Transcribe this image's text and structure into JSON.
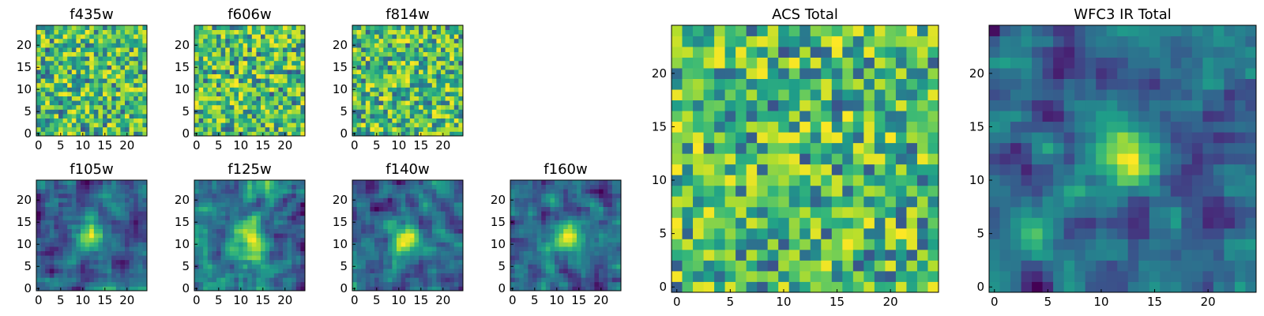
{
  "chart_data": [
    {
      "id": "f435w",
      "type": "heatmap",
      "title": "f435w",
      "grid_size": [
        25,
        25
      ],
      "xticks": [
        0,
        5,
        10,
        15,
        20
      ],
      "yticks": [
        0,
        5,
        10,
        15,
        20
      ],
      "colormap": "viridis",
      "grid": false,
      "peak": null
    },
    {
      "id": "f606w",
      "type": "heatmap",
      "title": "f606w",
      "grid_size": [
        25,
        25
      ],
      "xticks": [
        0,
        5,
        10,
        15,
        20
      ],
      "yticks": [
        0,
        5,
        10,
        15,
        20
      ],
      "colormap": "viridis",
      "grid": false,
      "peak": null
    },
    {
      "id": "f814w",
      "type": "heatmap",
      "title": "f814w",
      "grid_size": [
        25,
        25
      ],
      "xticks": [
        0,
        5,
        10,
        15,
        20
      ],
      "yticks": [
        0,
        5,
        10,
        15,
        20
      ],
      "colormap": "viridis",
      "grid": false,
      "peak": null
    },
    {
      "id": "f105w",
      "type": "heatmap",
      "title": "f105w",
      "grid_size": [
        25,
        25
      ],
      "xticks": [
        0,
        5,
        10,
        15,
        20
      ],
      "yticks": [
        0,
        5,
        10,
        15,
        20
      ],
      "colormap": "viridis",
      "grid": false,
      "peak": [
        12,
        12
      ]
    },
    {
      "id": "f125w",
      "type": "heatmap",
      "title": "f125w",
      "grid_size": [
        25,
        25
      ],
      "xticks": [
        0,
        5,
        10,
        15,
        20
      ],
      "yticks": [
        0,
        5,
        10,
        15,
        20
      ],
      "colormap": "viridis",
      "grid": false,
      "peak": [
        12,
        12
      ]
    },
    {
      "id": "f140w",
      "type": "heatmap",
      "title": "f140w",
      "grid_size": [
        25,
        25
      ],
      "xticks": [
        0,
        5,
        10,
        15,
        20
      ],
      "yticks": [
        0,
        5,
        10,
        15,
        20
      ],
      "colormap": "viridis",
      "grid": false,
      "peak": [
        12,
        11
      ]
    },
    {
      "id": "f160w",
      "type": "heatmap",
      "title": "f160w",
      "grid_size": [
        25,
        25
      ],
      "xticks": [
        0,
        5,
        10,
        15,
        20
      ],
      "yticks": [
        0,
        5,
        10,
        15,
        20
      ],
      "colormap": "viridis",
      "grid": false,
      "peak": [
        12,
        12
      ]
    },
    {
      "id": "acs-total",
      "type": "heatmap",
      "title": "ACS Total",
      "grid_size": [
        25,
        25
      ],
      "xticks": [
        0,
        5,
        10,
        15,
        20
      ],
      "yticks": [
        0,
        5,
        10,
        15,
        20
      ],
      "colormap": "viridis",
      "grid": false,
      "peak": null
    },
    {
      "id": "wfc3-ir-total",
      "type": "heatmap",
      "title": "WFC3 IR Total",
      "grid_size": [
        25,
        25
      ],
      "xticks": [
        0,
        5,
        10,
        15,
        20
      ],
      "yticks": [
        0,
        5,
        10,
        15,
        20
      ],
      "colormap": "viridis",
      "grid": false,
      "peak": [
        12,
        12
      ]
    }
  ]
}
